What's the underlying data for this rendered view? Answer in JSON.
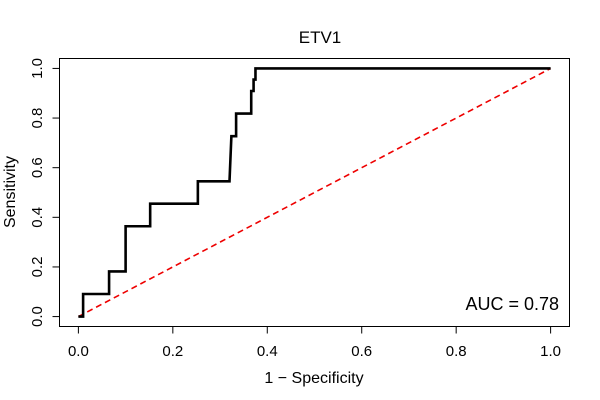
{
  "chart_data": {
    "type": "line",
    "title": "ETV1",
    "xlabel": "1 − Specificity",
    "ylabel": "Sensitivity",
    "xlim": [
      -0.04,
      1.04
    ],
    "ylim": [
      -0.04,
      1.04
    ],
    "x_ticks": [
      0.0,
      0.2,
      0.4,
      0.6,
      0.8,
      1.0
    ],
    "x_tick_labels": [
      "0.0",
      "0.2",
      "0.4",
      "0.6",
      "0.8",
      "1.0"
    ],
    "y_ticks": [
      0.0,
      0.2,
      0.4,
      0.6,
      0.8,
      1.0
    ],
    "y_tick_labels": [
      "0.0",
      "0.2",
      "0.4",
      "0.6",
      "0.8",
      "1.0"
    ],
    "grid": false,
    "legend": "none",
    "annotation": "AUC = 0.78",
    "series": [
      {
        "style": "solid",
        "color": "#000000",
        "x": [
          0.0,
          0.01,
          0.01,
          0.065,
          0.065,
          0.1,
          0.1,
          0.152,
          0.152,
          0.253,
          0.253,
          0.32,
          0.322,
          0.324,
          0.334,
          0.334,
          0.366,
          0.366,
          0.371,
          0.371,
          0.375,
          0.375,
          1.0
        ],
        "y": [
          0.0,
          0.0,
          0.091,
          0.091,
          0.182,
          0.182,
          0.364,
          0.364,
          0.455,
          0.455,
          0.545,
          0.545,
          0.636,
          0.727,
          0.727,
          0.818,
          0.818,
          0.909,
          0.909,
          0.955,
          0.955,
          1.0,
          1.0
        ]
      },
      {
        "style": "dashed",
        "color": "#ee0000",
        "x": [
          0.0,
          1.0
        ],
        "y": [
          0.0,
          1.0
        ]
      }
    ]
  }
}
